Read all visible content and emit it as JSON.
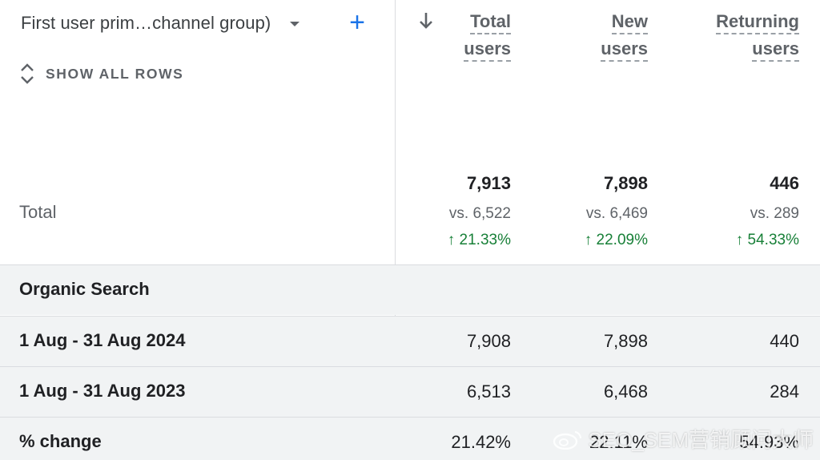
{
  "dimension": {
    "label": "First user prim…channel group)"
  },
  "show_all_rows": "SHOW ALL ROWS",
  "columns": [
    {
      "line1": "Total",
      "line2": "users"
    },
    {
      "line1": "New",
      "line2": "users"
    },
    {
      "line1": "Returning",
      "line2": "users"
    }
  ],
  "totals": {
    "label": "Total",
    "values": [
      "7,913",
      "7,898",
      "446"
    ],
    "vs": [
      "vs. 6,522",
      "vs. 6,469",
      "vs. 289"
    ],
    "change": [
      "↑ 21.33%",
      "↑ 22.09%",
      "↑ 54.33%"
    ]
  },
  "rows": [
    {
      "label": "Organic Search",
      "values": [
        "",
        "",
        ""
      ]
    },
    {
      "label": "1 Aug - 31 Aug 2024",
      "values": [
        "7,908",
        "7,898",
        "440"
      ]
    },
    {
      "label": "1 Aug - 31 Aug 2023",
      "values": [
        "6,513",
        "6,468",
        "284"
      ]
    },
    {
      "label": "% change",
      "values": [
        "21.42%",
        "22.11%",
        "54.93%"
      ]
    }
  ],
  "watermark": "SEO_SEM营销顾问大师",
  "colors": {
    "accent": "#1a73e8",
    "positive": "#188038",
    "row_bg": "#f1f3f4",
    "border": "#dadce0"
  },
  "icons": {
    "sort": "arrow-down-icon",
    "add": "plus-icon",
    "expand": "unfold-more-icon",
    "dropdown": "caret-down-icon"
  }
}
